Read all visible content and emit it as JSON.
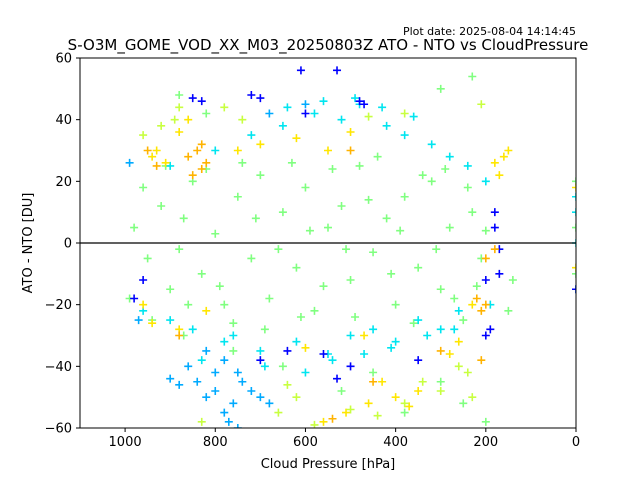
{
  "plot_date": "Plot date: 2025-08-04 14:14:45",
  "chart_data": {
    "type": "scatter",
    "title": "S-O3M_GOME_VOD_XX_M03_20250803Z ATO - NTO vs CloudPressure",
    "xlabel": "Cloud Pressure [hPa]",
    "ylabel": "ATO - NTO [DU]",
    "xlim": [
      1100,
      0
    ],
    "ylim": [
      -60,
      60
    ],
    "x_inverted": true,
    "xticks": [
      1000,
      800,
      600,
      400,
      200,
      0
    ],
    "yticks": [
      -60,
      -40,
      -20,
      0,
      20,
      40,
      60
    ],
    "reference_line_y": 0,
    "marker": "+",
    "grid": false,
    "legend": "none",
    "colors": {
      "blue": "#0000ff",
      "light_blue": "#00aaff",
      "cyan": "#00e5f0",
      "light_green": "#80ff80",
      "yellow_green": "#c8ff40",
      "yellow": "#ffe600",
      "orange": "#ffb300",
      "reference_line": "#000000"
    },
    "series": [
      {
        "color": "light_green",
        "points": [
          [
            980,
            5
          ],
          [
            950,
            -5
          ],
          [
            920,
            12
          ],
          [
            900,
            -15
          ],
          [
            870,
            8
          ],
          [
            850,
            20
          ],
          [
            830,
            -10
          ],
          [
            800,
            3
          ],
          [
            780,
            -20
          ],
          [
            750,
            15
          ],
          [
            720,
            -5
          ],
          [
            700,
            22
          ],
          [
            680,
            -18
          ],
          [
            650,
            10
          ],
          [
            620,
            -8
          ],
          [
            600,
            18
          ],
          [
            580,
            -22
          ],
          [
            550,
            5
          ],
          [
            520,
            12
          ],
          [
            500,
            -12
          ],
          [
            480,
            25
          ],
          [
            450,
            -3
          ],
          [
            420,
            8
          ],
          [
            400,
            -20
          ],
          [
            380,
            15
          ],
          [
            350,
            -8
          ],
          [
            320,
            20
          ],
          [
            300,
            -15
          ],
          [
            280,
            5
          ],
          [
            250,
            -25
          ],
          [
            230,
            10
          ],
          [
            210,
            -5
          ],
          [
            990,
            -18
          ],
          [
            960,
            18
          ],
          [
            940,
            -25
          ],
          [
            910,
            25
          ],
          [
            880,
            -2
          ],
          [
            860,
            -20
          ],
          [
            820,
            24
          ],
          [
            790,
            -14
          ],
          [
            760,
            -26
          ],
          [
            740,
            26
          ],
          [
            710,
            8
          ],
          [
            690,
            -28
          ],
          [
            660,
            -2
          ],
          [
            630,
            26
          ],
          [
            610,
            -24
          ],
          [
            590,
            4
          ],
          [
            560,
            -14
          ],
          [
            540,
            24
          ],
          [
            510,
            -2
          ],
          [
            490,
            -24
          ],
          [
            460,
            14
          ],
          [
            440,
            28
          ],
          [
            410,
            -10
          ],
          [
            390,
            4
          ],
          [
            360,
            -26
          ],
          [
            340,
            22
          ],
          [
            310,
            -2
          ],
          [
            290,
            24
          ],
          [
            270,
            -18
          ],
          [
            240,
            18
          ],
          [
            220,
            -14
          ],
          [
            200,
            4
          ],
          [
            0,
            20
          ],
          [
            0,
            -10
          ],
          [
            0,
            5
          ],
          [
            150,
            -22
          ],
          [
            140,
            -12
          ],
          [
            870,
            -30
          ],
          [
            760,
            -35
          ],
          [
            650,
            -40
          ],
          [
            520,
            -48
          ],
          [
            450,
            -42
          ],
          [
            380,
            -55
          ],
          [
            300,
            -45
          ],
          [
            250,
            -52
          ],
          [
            200,
            -58
          ],
          [
            880,
            48
          ],
          [
            820,
            42
          ],
          [
            300,
            50
          ],
          [
            230,
            54
          ]
        ]
      },
      {
        "color": "cyan",
        "points": [
          [
            960,
            -22
          ],
          [
            900,
            25
          ],
          [
            850,
            -28
          ],
          [
            800,
            30
          ],
          [
            760,
            -30
          ],
          [
            720,
            35
          ],
          [
            700,
            -35
          ],
          [
            650,
            38
          ],
          [
            620,
            -32
          ],
          [
            580,
            42
          ],
          [
            550,
            -36
          ],
          [
            520,
            40
          ],
          [
            500,
            -30
          ],
          [
            480,
            45
          ],
          [
            450,
            -28
          ],
          [
            420,
            38
          ],
          [
            400,
            -32
          ],
          [
            380,
            35
          ],
          [
            350,
            -25
          ],
          [
            320,
            32
          ],
          [
            300,
            -28
          ],
          [
            280,
            28
          ],
          [
            260,
            -22
          ],
          [
            240,
            25
          ],
          [
            900,
            -25
          ],
          [
            830,
            -38
          ],
          [
            780,
            -32
          ],
          [
            690,
            -40
          ],
          [
            600,
            -42
          ],
          [
            540,
            -38
          ],
          [
            470,
            -36
          ],
          [
            410,
            -34
          ],
          [
            330,
            -30
          ],
          [
            270,
            -28
          ],
          [
            640,
            44
          ],
          [
            560,
            46
          ],
          [
            490,
            47
          ],
          [
            430,
            44
          ],
          [
            360,
            41
          ],
          [
            200,
            20
          ],
          [
            190,
            -20
          ],
          [
            0,
            10
          ],
          [
            0,
            -15
          ],
          [
            0,
            0
          ],
          [
            0,
            15
          ]
        ]
      },
      {
        "color": "light_blue",
        "points": [
          [
            860,
            -40
          ],
          [
            840,
            -45
          ],
          [
            820,
            -50
          ],
          [
            800,
            -48
          ],
          [
            780,
            -55
          ],
          [
            770,
            -58
          ],
          [
            760,
            -52
          ],
          [
            750,
            -60
          ],
          [
            740,
            -45
          ],
          [
            800,
            -42
          ],
          [
            880,
            -46
          ],
          [
            900,
            -44
          ],
          [
            720,
            -48
          ],
          [
            700,
            -50
          ],
          [
            680,
            -52
          ],
          [
            820,
            -35
          ],
          [
            780,
            -38
          ],
          [
            750,
            -42
          ],
          [
            990,
            26
          ],
          [
            970,
            -25
          ],
          [
            680,
            42
          ],
          [
            600,
            45
          ]
        ]
      },
      {
        "color": "blue",
        "points": [
          [
            850,
            47
          ],
          [
            720,
            48
          ],
          [
            700,
            47
          ],
          [
            610,
            56
          ],
          [
            530,
            56
          ],
          [
            480,
            46
          ],
          [
            500,
            -40
          ],
          [
            530,
            -44
          ],
          [
            700,
            -38
          ],
          [
            350,
            -38
          ],
          [
            180,
            10
          ],
          [
            170,
            -10
          ],
          [
            170,
            -2
          ],
          [
            180,
            5
          ],
          [
            200,
            -12
          ],
          [
            190,
            -28
          ],
          [
            200,
            -30
          ],
          [
            0,
            -15
          ],
          [
            980,
            -18
          ],
          [
            960,
            -12
          ],
          [
            830,
            46
          ],
          [
            600,
            42
          ],
          [
            470,
            45
          ],
          [
            560,
            -36
          ],
          [
            640,
            -35
          ]
        ]
      },
      {
        "color": "yellow",
        "points": [
          [
            940,
            28
          ],
          [
            930,
            30
          ],
          [
            910,
            26
          ],
          [
            880,
            36
          ],
          [
            860,
            40
          ],
          [
            750,
            30
          ],
          [
            700,
            32
          ],
          [
            620,
            34
          ],
          [
            550,
            30
          ],
          [
            500,
            36
          ],
          [
            470,
            -30
          ],
          [
            430,
            -45
          ],
          [
            400,
            -50
          ],
          [
            370,
            -53
          ],
          [
            350,
            -48
          ],
          [
            280,
            -36
          ],
          [
            260,
            -32
          ],
          [
            230,
            -20
          ],
          [
            180,
            26
          ],
          [
            170,
            22
          ],
          [
            160,
            28
          ],
          [
            150,
            30
          ],
          [
            880,
            -28
          ],
          [
            820,
            -22
          ],
          [
            600,
            -34
          ],
          [
            560,
            -58
          ],
          [
            510,
            -55
          ],
          [
            460,
            -52
          ],
          [
            0,
            18
          ],
          [
            0,
            -8
          ],
          [
            960,
            -20
          ],
          [
            940,
            -26
          ]
        ]
      },
      {
        "color": "orange",
        "points": [
          [
            860,
            28
          ],
          [
            840,
            30
          ],
          [
            830,
            24
          ],
          [
            830,
            32
          ],
          [
            820,
            26
          ],
          [
            850,
            22
          ],
          [
            950,
            30
          ],
          [
            930,
            25
          ],
          [
            500,
            30
          ],
          [
            200,
            -20
          ],
          [
            220,
            -18
          ],
          [
            210,
            -22
          ],
          [
            200,
            -5
          ],
          [
            180,
            -2
          ],
          [
            210,
            -38
          ],
          [
            450,
            -45
          ],
          [
            540,
            -57
          ],
          [
            300,
            -35
          ],
          [
            880,
            -30
          ]
        ]
      },
      {
        "color": "yellow_green",
        "points": [
          [
            890,
            40
          ],
          [
            880,
            44
          ],
          [
            780,
            44
          ],
          [
            740,
            40
          ],
          [
            640,
            -46
          ],
          [
            620,
            -50
          ],
          [
            500,
            -54
          ],
          [
            380,
            -52
          ],
          [
            340,
            -45
          ],
          [
            300,
            -48
          ],
          [
            260,
            -40
          ],
          [
            240,
            -42
          ],
          [
            230,
            -50
          ],
          [
            960,
            35
          ],
          [
            920,
            38
          ],
          [
            460,
            41
          ],
          [
            380,
            42
          ],
          [
            210,
            45
          ],
          [
            830,
            -58
          ],
          [
            660,
            -55
          ],
          [
            580,
            -59
          ],
          [
            440,
            -56
          ]
        ]
      }
    ]
  }
}
